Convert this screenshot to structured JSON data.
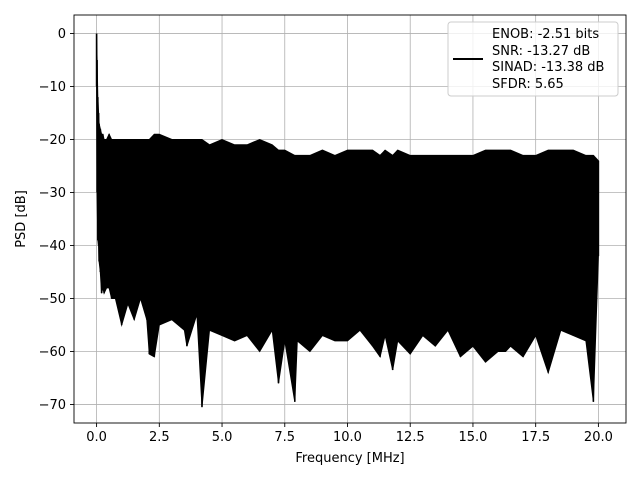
{
  "chart_data": {
    "type": "line",
    "title": "",
    "xlabel": "Frequency [MHz]",
    "ylabel": "PSD [dB]",
    "xlim": [
      -0.9,
      21.1
    ],
    "ylim": [
      -73.5,
      3.5
    ],
    "xticks": [
      0.0,
      2.5,
      5.0,
      7.5,
      10.0,
      12.5,
      15.0,
      17.5,
      20.0
    ],
    "xtick_labels": [
      "0.0",
      "2.5",
      "5.0",
      "7.5",
      "10.0",
      "12.5",
      "15.0",
      "17.5",
      "20.0"
    ],
    "yticks": [
      0,
      -10,
      -20,
      -30,
      -40,
      -50,
      -60,
      -70
    ],
    "ytick_labels": [
      "0",
      "−10",
      "−20",
      "−30",
      "−40",
      "−50",
      "−60",
      "−70"
    ],
    "grid": true,
    "legend_position": "top-right",
    "series": [
      {
        "name": "ENOB: -2.51 bits\nSNR: -13.27 dB\nSINAD: -13.38 dB\nSFDR: 5.65",
        "legend_lines": [
          "ENOB: -2.51 bits",
          "SNR: -13.27 dB",
          "SINAD: -13.38 dB",
          "SFDR: 5.65"
        ],
        "color": "#000000",
        "x": [
          0.0,
          0.02,
          0.05,
          0.08,
          0.1,
          0.15,
          0.2,
          0.25,
          0.3,
          0.4,
          0.5,
          0.6,
          0.75,
          1.0,
          1.25,
          1.5,
          1.75,
          2.0,
          2.1,
          2.3,
          2.5,
          3.0,
          3.5,
          3.6,
          4.0,
          4.2,
          4.5,
          5.0,
          5.5,
          6.0,
          6.5,
          7.0,
          7.25,
          7.5,
          7.9,
          8.0,
          8.5,
          9.0,
          9.5,
          10.0,
          10.5,
          11.0,
          11.3,
          11.5,
          11.8,
          12.0,
          12.5,
          13.0,
          13.5,
          14.0,
          14.5,
          15.0,
          15.5,
          16.0,
          16.3,
          16.5,
          17.0,
          17.5,
          18.0,
          18.5,
          19.0,
          19.5,
          19.8,
          20.0
        ],
        "upper": [
          0,
          -5,
          -12,
          -15,
          -17,
          -18,
          -19,
          -19,
          -20,
          -20,
          -19,
          -20,
          -20,
          -20,
          -20,
          -20,
          -20,
          -20,
          -20,
          -19,
          -19,
          -20,
          -20,
          -20,
          -20,
          -20,
          -21,
          -20,
          -21,
          -21,
          -20,
          -21,
          -22,
          -22,
          -23,
          -23,
          -23,
          -22,
          -23,
          -22,
          -22,
          -22,
          -23,
          -22,
          -23,
          -22,
          -23,
          -23,
          -23,
          -23,
          -23,
          -23,
          -22,
          -22,
          -22,
          -22,
          -23,
          -23,
          -22,
          -22,
          -22,
          -23,
          -23,
          -24
        ],
        "lower": [
          -10,
          -30,
          -39,
          -40,
          -43,
          -45,
          -49,
          -48,
          -49,
          -48,
          -48,
          -50,
          -50,
          -55,
          -51,
          -54,
          -50,
          -54,
          -60.5,
          -61,
          -55,
          -54,
          -56,
          -59,
          -53,
          -70.5,
          -56,
          -57,
          -58,
          -57,
          -60,
          -56,
          -66,
          -58,
          -69.5,
          -58,
          -60,
          -57,
          -58,
          -58,
          -56,
          -59,
          -61,
          -57,
          -63.5,
          -58,
          -60.5,
          -57,
          -59,
          -56,
          -61,
          -59,
          -62,
          -60,
          -60,
          -59,
          -61,
          -57,
          -64,
          -56,
          -57,
          -58,
          -69.5,
          -42
        ]
      }
    ]
  }
}
